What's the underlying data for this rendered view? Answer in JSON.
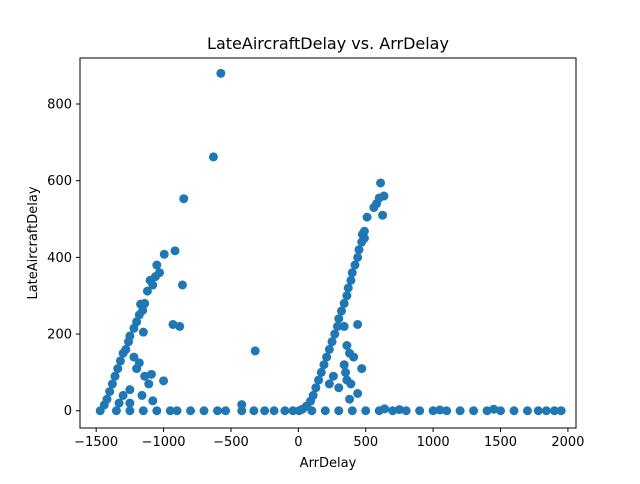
{
  "chart_data": {
    "type": "scatter",
    "title": "LateAircraftDelay vs. ArrDelay",
    "xlabel": "ArrDelay",
    "ylabel": "LateAircraftDelay",
    "xlim": [
      -1620,
      2060
    ],
    "ylim": [
      -45,
      920
    ],
    "xticks": [
      -1500,
      -1000,
      -500,
      0,
      500,
      1000,
      1500,
      2000
    ],
    "yticks": [
      0,
      200,
      400,
      600,
      800
    ],
    "grid": false,
    "marker_color": "#1f77b4",
    "series": [
      {
        "name": "LateAircraftDelay",
        "points": [
          [
            -575,
            880
          ],
          [
            -630,
            662
          ],
          [
            -850,
            553
          ],
          [
            -915,
            417
          ],
          [
            -995,
            408
          ],
          [
            -1050,
            380
          ],
          [
            -1030,
            360
          ],
          [
            -1060,
            350
          ],
          [
            -1100,
            340
          ],
          [
            -1080,
            328
          ],
          [
            -860,
            328
          ],
          [
            -1120,
            312
          ],
          [
            -1140,
            280
          ],
          [
            -1170,
            278
          ],
          [
            -1155,
            262
          ],
          [
            -1180,
            250
          ],
          [
            -1200,
            232
          ],
          [
            -1220,
            215
          ],
          [
            -1150,
            205
          ],
          [
            -1250,
            195
          ],
          [
            -1260,
            180
          ],
          [
            -1280,
            160
          ],
          [
            -1300,
            150
          ],
          [
            -1320,
            130
          ],
          [
            -1340,
            110
          ],
          [
            -1360,
            90
          ],
          [
            -1380,
            70
          ],
          [
            -1400,
            50
          ],
          [
            -1420,
            30
          ],
          [
            -1440,
            15
          ],
          [
            -1470,
            0
          ],
          [
            -1350,
            0
          ],
          [
            -1250,
            0
          ],
          [
            -1150,
            0
          ],
          [
            -1050,
            0
          ],
          [
            -950,
            0
          ],
          [
            -900,
            0
          ],
          [
            -800,
            0
          ],
          [
            -700,
            0
          ],
          [
            -600,
            0
          ],
          [
            -540,
            0
          ],
          [
            -420,
            16
          ],
          [
            -420,
            0
          ],
          [
            -330,
            0
          ],
          [
            -320,
            156
          ],
          [
            -250,
            0
          ],
          [
            -180,
            0
          ],
          [
            -100,
            0
          ],
          [
            -40,
            0
          ],
          [
            -930,
            225
          ],
          [
            -880,
            220
          ],
          [
            -1000,
            78
          ],
          [
            -1090,
            95
          ],
          [
            -1110,
            70
          ],
          [
            -1140,
            90
          ],
          [
            -1200,
            110
          ],
          [
            -1180,
            125
          ],
          [
            -1220,
            140
          ],
          [
            -1080,
            26
          ],
          [
            -1250,
            55
          ],
          [
            -1300,
            40
          ],
          [
            -1330,
            20
          ],
          [
            -1250,
            20
          ],
          [
            -1160,
            40
          ],
          [
            610,
            594
          ],
          [
            635,
            560
          ],
          [
            600,
            555
          ],
          [
            580,
            540
          ],
          [
            560,
            530
          ],
          [
            625,
            510
          ],
          [
            510,
            505
          ],
          [
            490,
            468
          ],
          [
            475,
            460
          ],
          [
            490,
            450
          ],
          [
            470,
            440
          ],
          [
            450,
            420
          ],
          [
            440,
            400
          ],
          [
            420,
            380
          ],
          [
            400,
            360
          ],
          [
            390,
            340
          ],
          [
            370,
            320
          ],
          [
            360,
            300
          ],
          [
            340,
            280
          ],
          [
            320,
            260
          ],
          [
            300,
            240
          ],
          [
            290,
            220
          ],
          [
            270,
            200
          ],
          [
            250,
            180
          ],
          [
            230,
            160
          ],
          [
            210,
            140
          ],
          [
            190,
            120
          ],
          [
            170,
            100
          ],
          [
            150,
            80
          ],
          [
            130,
            60
          ],
          [
            110,
            40
          ],
          [
            90,
            25
          ],
          [
            60,
            12
          ],
          [
            30,
            4
          ],
          [
            5,
            0
          ],
          [
            440,
            225
          ],
          [
            340,
            220
          ],
          [
            360,
            170
          ],
          [
            380,
            150
          ],
          [
            410,
            140
          ],
          [
            470,
            110
          ],
          [
            340,
            120
          ],
          [
            350,
            100
          ],
          [
            360,
            80
          ],
          [
            390,
            70
          ],
          [
            440,
            45
          ],
          [
            300,
            60
          ],
          [
            260,
            90
          ],
          [
            230,
            70
          ],
          [
            380,
            30
          ],
          [
            100,
            0
          ],
          [
            200,
            0
          ],
          [
            300,
            0
          ],
          [
            400,
            0
          ],
          [
            500,
            0
          ],
          [
            600,
            0
          ],
          [
            700,
            0
          ],
          [
            800,
            0
          ],
          [
            900,
            0
          ],
          [
            1000,
            0
          ],
          [
            1100,
            0
          ],
          [
            1200,
            0
          ],
          [
            1300,
            0
          ],
          [
            1400,
            0
          ],
          [
            1500,
            0
          ],
          [
            1600,
            0
          ],
          [
            1700,
            0
          ],
          [
            1780,
            0
          ],
          [
            1840,
            0
          ],
          [
            1900,
            0
          ],
          [
            1950,
            0
          ],
          [
            640,
            5
          ],
          [
            750,
            3
          ],
          [
            1050,
            2
          ],
          [
            1450,
            4
          ]
        ]
      }
    ]
  }
}
